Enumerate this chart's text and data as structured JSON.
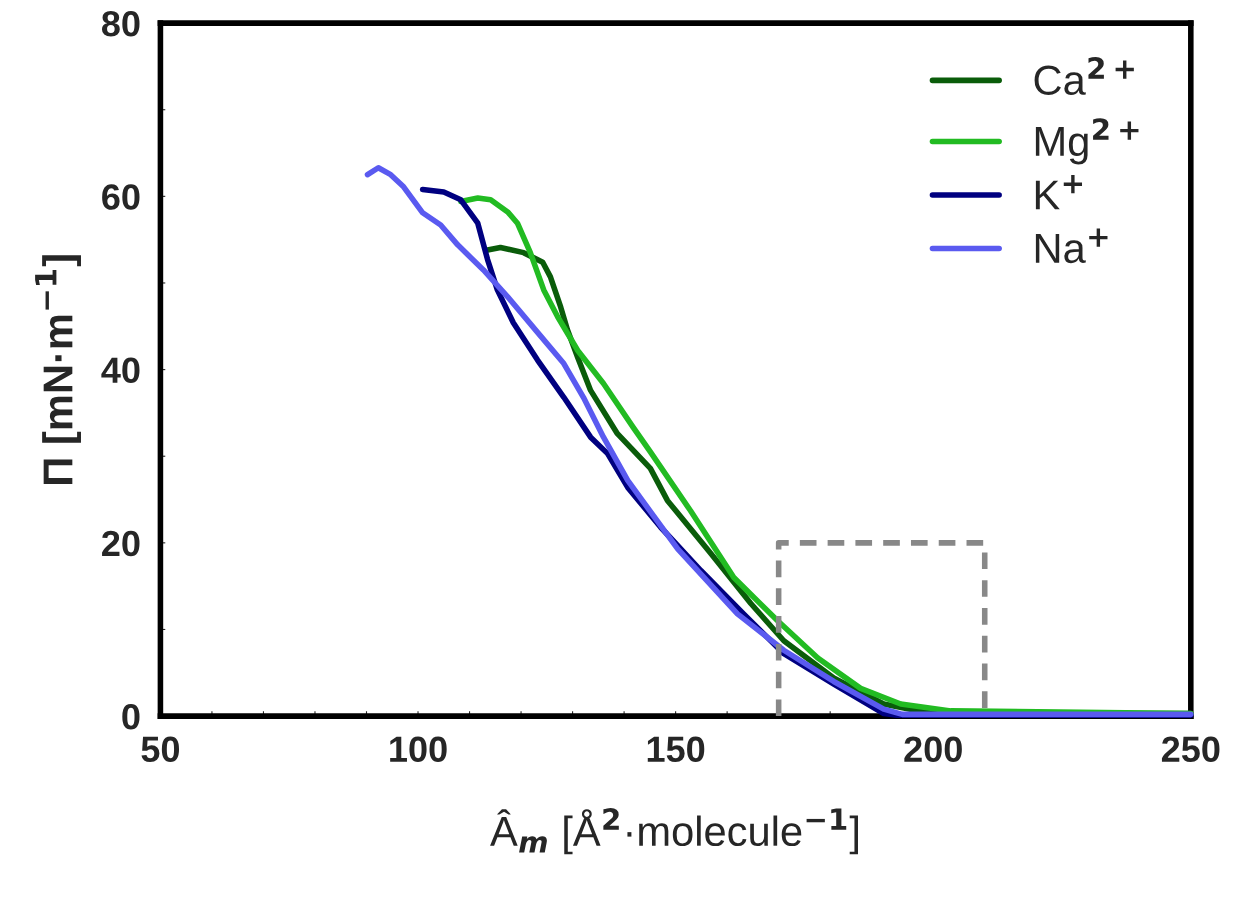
{
  "chart_data": {
    "type": "line",
    "xlabel": "Â$_{m}$ [Å$^{2}$·molecule$^{−1}$]",
    "ylabel": "Π [mN·m$^{−1}$]",
    "xlim": [
      50,
      250
    ],
    "ylim": [
      0,
      80
    ],
    "xticks": [
      50,
      {
        "value": 60,
        "label": null
      },
      {
        "value": 70,
        "label": null
      },
      {
        "value": 80,
        "label": null
      },
      {
        "value": 90,
        "label": null
      },
      100,
      {
        "value": 110,
        "label": null
      },
      {
        "value": 120,
        "label": null
      },
      {
        "value": 130,
        "label": null
      },
      {
        "value": 140,
        "label": null
      },
      150,
      {
        "value": 160,
        "label": null
      },
      {
        "value": 170,
        "label": null
      },
      {
        "value": 180,
        "label": null
      },
      {
        "value": 190,
        "label": null
      },
      200,
      {
        "value": 210,
        "label": null
      },
      {
        "value": 220,
        "label": null
      },
      {
        "value": 230,
        "label": null
      },
      {
        "value": 240,
        "label": null
      },
      250
    ],
    "yticks": [
      0,
      {
        "value": 10,
        "label": null
      },
      20,
      {
        "value": 30,
        "label": null
      },
      40,
      {
        "value": 50,
        "label": null
      },
      60,
      {
        "value": 70,
        "label": null
      },
      80
    ],
    "grid": false,
    "legend": "top right",
    "marker": "none",
    "line_style": "solid",
    "series": [
      {
        "name": "Ca$^{2+}$",
        "color": "#0a5c0a",
        "x": [
          113.5,
          116,
          120.5,
          124.2,
          125.7,
          127.7,
          129,
          131,
          133.5,
          138.7,
          145.1,
          148.4,
          156.8,
          164.6,
          171,
          180.7,
          190.4,
          197,
          210,
          250
        ],
        "values": [
          53.8,
          54.1,
          53.5,
          52.4,
          50.7,
          47.2,
          44.6,
          41.4,
          37.6,
          32.6,
          28.6,
          24.9,
          18.8,
          13,
          8.7,
          4.4,
          1.4,
          0.6,
          0.3,
          0.3
        ]
      },
      {
        "name": "Mg$^{2+}$",
        "color": "#22bb22",
        "x": [
          108.3,
          111.6,
          114.1,
          117.4,
          119.3,
          121.8,
          124.4,
          127.1,
          131,
          136,
          141.8,
          145.1,
          152.9,
          161.3,
          169.8,
          177.6,
          185.9,
          193.7,
          203.4,
          250
        ],
        "values": [
          59.4,
          59.8,
          59.6,
          58.2,
          56.9,
          53.5,
          49.2,
          46.1,
          42.2,
          38.4,
          33.3,
          30.5,
          23.7,
          16,
          11,
          6.7,
          3.2,
          1.4,
          0.6,
          0.3
        ]
      },
      {
        "name": "K$^{+}$",
        "color": "#000080",
        "x": [
          100.9,
          105,
          108.3,
          111.6,
          113.5,
          115.4,
          118.5,
          123.2,
          128.3,
          133.5,
          136.8,
          140.7,
          147.1,
          154.9,
          163.2,
          171,
          180.7,
          190.4,
          193,
          250
        ],
        "values": [
          60.8,
          60.5,
          59.6,
          56.9,
          52.7,
          49.2,
          45.4,
          41.1,
          36.8,
          32.2,
          30.3,
          26.4,
          21.8,
          16.8,
          11.8,
          7.2,
          3.7,
          0.3,
          0.1,
          0.1
        ]
      },
      {
        "name": "Na$^{+}$",
        "color": "#5a5af0",
        "x": [
          90.2,
          92.3,
          94.7,
          97.2,
          100.9,
          104.4,
          107.7,
          112.7,
          117.4,
          123.2,
          128.3,
          132.1,
          136,
          140.7,
          150.4,
          162,
          171,
          180.7,
          190.4,
          194,
          250
        ],
        "values": [
          62.5,
          63.3,
          62.5,
          61.1,
          58.1,
          56.7,
          54.4,
          51.5,
          48.4,
          44.3,
          40.7,
          36.8,
          32.2,
          27.2,
          19.3,
          11.8,
          7.6,
          4,
          0.8,
          0.2,
          0.2
        ]
      },
      {
        "type": "line",
        "color": "#888888",
        "line_style": "dashed",
        "x": [
          170,
          170,
          210,
          210
        ],
        "values": [
          0,
          20,
          20,
          0
        ]
      }
    ]
  }
}
